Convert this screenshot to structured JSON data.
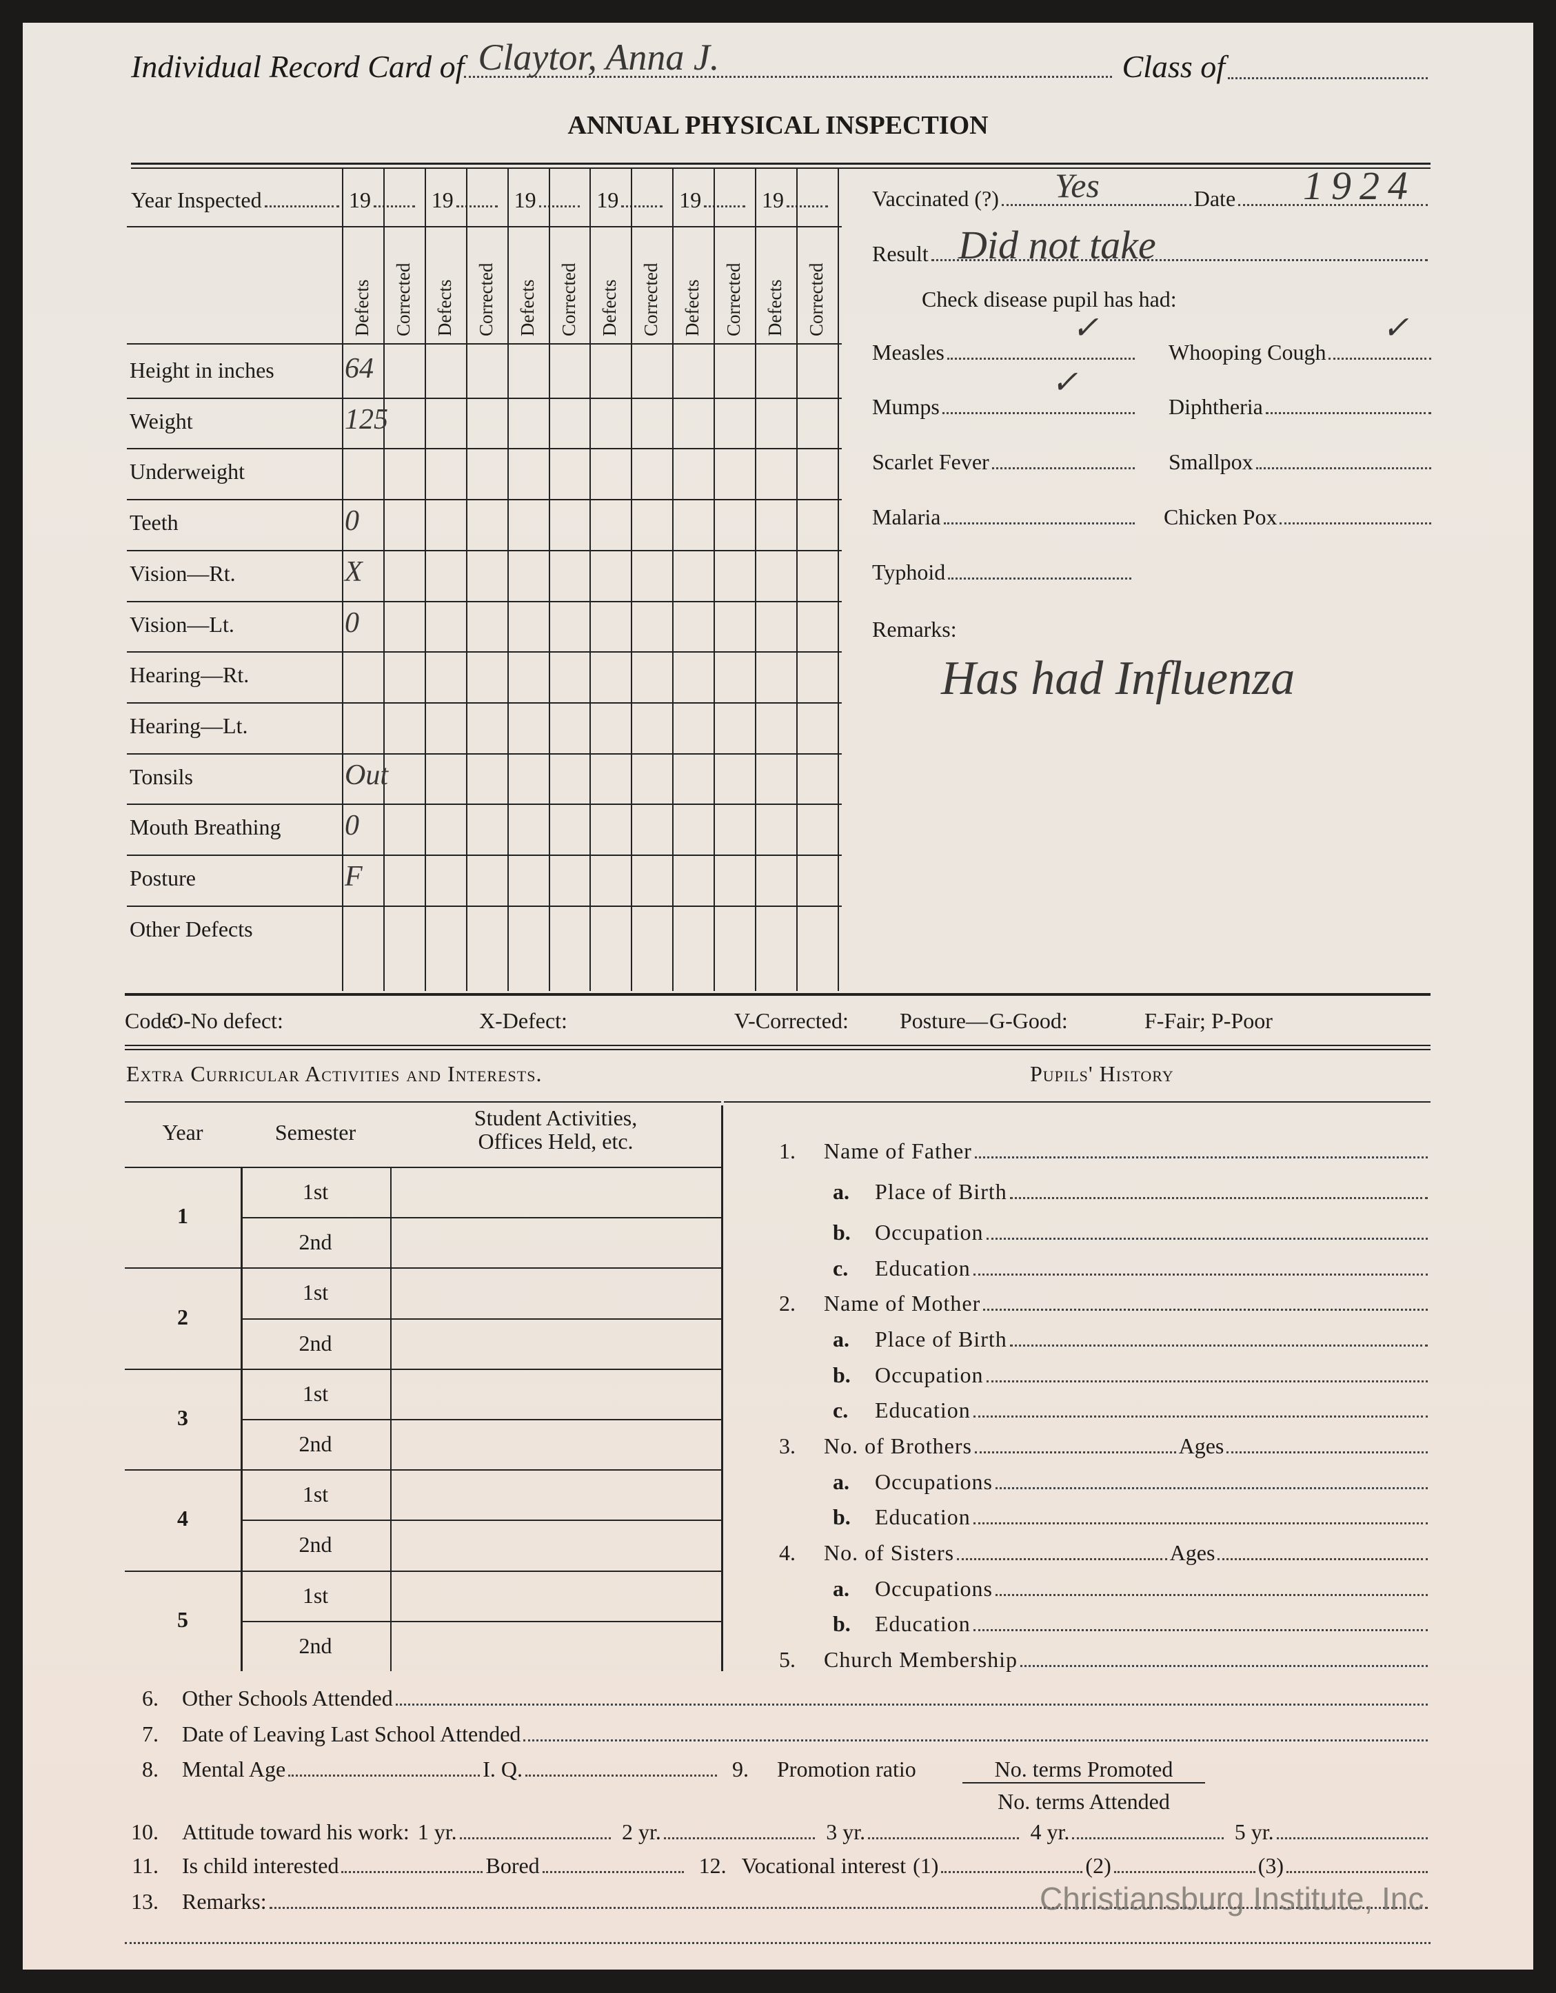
{
  "header": {
    "title_label": "Individual Record Card of",
    "name_value": "Claytor, Anna J.",
    "class_label": "Class of",
    "class_value": ""
  },
  "section_title": "ANNUAL PHYSICAL INSPECTION",
  "physical": {
    "year_label": "Year Inspected",
    "years": [
      "19",
      "19",
      "19",
      "19",
      "19",
      "19"
    ],
    "defects_label": "Defects",
    "corrected_label": "Corrected",
    "rows": [
      {
        "label": "Height in inches",
        "value": "64"
      },
      {
        "label": "Weight",
        "value": "125"
      },
      {
        "label": "Underweight",
        "value": ""
      },
      {
        "label": "Teeth",
        "value": "0"
      },
      {
        "label": "Vision—Rt.",
        "value": "X"
      },
      {
        "label": "Vision—Lt.",
        "value": "0"
      },
      {
        "label": "Hearing—Rt.",
        "value": ""
      },
      {
        "label": "Hearing—Lt.",
        "value": ""
      },
      {
        "label": "Tonsils",
        "value": "Out"
      },
      {
        "label": "Mouth Breathing",
        "value": "0"
      },
      {
        "label": "Posture",
        "value": "F"
      },
      {
        "label": "Other Defects",
        "value": ""
      }
    ]
  },
  "vaccination": {
    "vaccinated_label": "Vaccinated (?)",
    "vaccinated_value": "Yes",
    "date_label": "Date",
    "date_value": "1924",
    "result_label": "Result",
    "result_value": "Did not take",
    "check_label": "Check disease pupil has had:"
  },
  "diseases": [
    {
      "label": "Measles",
      "checked": true
    },
    {
      "label": "Whooping Cough",
      "checked": true
    },
    {
      "label": "Mumps",
      "checked": true
    },
    {
      "label": "Diphtheria",
      "checked": false
    },
    {
      "label": "Scarlet Fever",
      "checked": false
    },
    {
      "label": "Smallpox",
      "checked": false
    },
    {
      "label": "Malaria",
      "checked": false
    },
    {
      "label": "Chicken Pox",
      "checked": false
    },
    {
      "label": "Typhoid",
      "checked": false
    }
  ],
  "remarks": {
    "label": "Remarks:",
    "value": "Has had Influenza"
  },
  "code": [
    "Code:",
    "O-No defect:",
    "X-Defect:",
    "V-Corrected:",
    "Posture—",
    "G-Good:",
    "F-Fair;",
    "P-Poor"
  ],
  "activities": {
    "title": "Extra Curricular Activities and Interests.",
    "headers": [
      "Year",
      "Semester",
      "Student Activities,\nOffices Held, etc."
    ],
    "years": [
      "1",
      "2",
      "3",
      "4",
      "5"
    ],
    "semesters": [
      "1st",
      "2nd"
    ]
  },
  "history": {
    "title": "Pupils' History",
    "items": [
      {
        "num": "1.",
        "label": "Name of Father"
      },
      {
        "num": "a.",
        "label": "Place of Birth",
        "sub": true
      },
      {
        "num": "b.",
        "label": "Occupation",
        "sub": true
      },
      {
        "num": "c.",
        "label": "Education",
        "sub": true
      },
      {
        "num": "2.",
        "label": "Name of Mother"
      },
      {
        "num": "a.",
        "label": "Place of Birth",
        "sub": true
      },
      {
        "num": "b.",
        "label": "Occupation",
        "sub": true
      },
      {
        "num": "c.",
        "label": "Education",
        "sub": true
      },
      {
        "num": "3.",
        "label": "No. of Brothers",
        "ages": "Ages"
      },
      {
        "num": "a.",
        "label": "Occupations",
        "sub": true
      },
      {
        "num": "b.",
        "label": "Education",
        "sub": true
      },
      {
        "num": "4.",
        "label": "No. of Sisters",
        "ages": "Ages"
      },
      {
        "num": "a.",
        "label": "Occupations",
        "sub": true
      },
      {
        "num": "b.",
        "label": "Education",
        "sub": true
      },
      {
        "num": "5.",
        "label": "Church Membership"
      }
    ]
  },
  "bottom": {
    "n6": "6.",
    "l6": "Other Schools Attended",
    "n7": "7.",
    "l7": "Date of Leaving Last School Attended",
    "n8": "8.",
    "l8": "Mental Age",
    "iq": "I. Q.",
    "n9": "9.",
    "l9": "Promotion ratio",
    "num9": "No. terms Promoted",
    "den9": "No. terms Attended",
    "n10": "10.",
    "l10": "Attitude toward his work:",
    "yrs": [
      "1 yr.",
      "2 yr.",
      "3 yr.",
      "4 yr.",
      "5 yr."
    ],
    "n11": "11.",
    "l11": "Is child interested",
    "bored": "Bored",
    "n12": "12.",
    "l12": "Vocational interest",
    "voc": [
      "(1)",
      "(2)",
      "(3)"
    ],
    "n13": "13.",
    "l13": "Remarks:"
  },
  "watermark": "Christiansburg Institute, Inc"
}
